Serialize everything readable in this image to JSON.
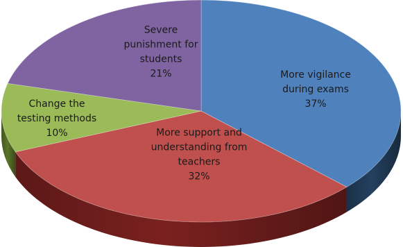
{
  "chart_data": {
    "type": "pie",
    "title": "",
    "legend": "none",
    "slices": [
      {
        "label": "More vigilance during exams",
        "label_lines": [
          "More vigilance",
          "during exams"
        ],
        "value": 37,
        "value_label": "37%",
        "color": "#4f81bd",
        "side_color": "#24405f"
      },
      {
        "label": "More support and understanding from teachers",
        "label_lines": [
          "More support and",
          "understanding from",
          "teachers"
        ],
        "value": 32,
        "value_label": "32%",
        "color": "#c0504d",
        "side_color": "#7a211f"
      },
      {
        "label": "Change the testing methods",
        "label_lines": [
          "Change the",
          "testing methods"
        ],
        "value": 10,
        "value_label": "10%",
        "color": "#9bbb59",
        "side_color": "#5a7428"
      },
      {
        "label": "Severe punishment for students",
        "label_lines": [
          "Severe",
          "punishment for",
          "students"
        ],
        "value": 21,
        "value_label": "21%",
        "color": "#8064a2",
        "side_color": "#47346a"
      }
    ]
  }
}
